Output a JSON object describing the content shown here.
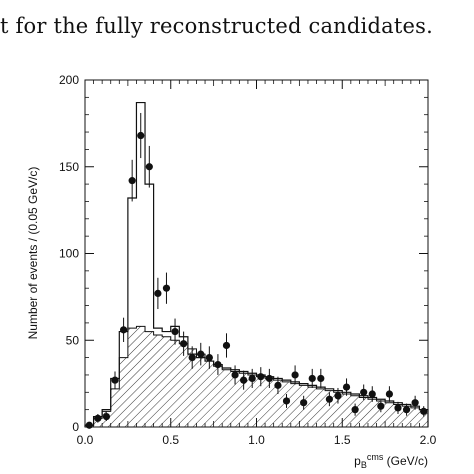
{
  "caption": "t for the fully reconstructed candidates.",
  "chart_data": {
    "type": "bar",
    "xlabel": "p",
    "xlabel_sub": "B",
    "xlabel_sup": "cms",
    "xlabel_unit": " (GeV/c)",
    "ylabel": "Number of events / (0.05 GeV/c)",
    "xlim": [
      0.0,
      2.0
    ],
    "ylim": [
      0,
      200
    ],
    "x_ticks": [
      "0.0",
      "0.5",
      "1.0",
      "1.5",
      "2.0"
    ],
    "y_ticks": [
      "0",
      "50",
      "100",
      "150",
      "200"
    ],
    "grid": false,
    "bin_edges": [
      0.0,
      0.05,
      0.1,
      0.15,
      0.2,
      0.25,
      0.3,
      0.35,
      0.4,
      0.45,
      0.5,
      0.55,
      0.6,
      0.65,
      0.7,
      0.75,
      0.8,
      0.85,
      0.9,
      0.95,
      1.0,
      1.05,
      1.1,
      1.15,
      1.2,
      1.25,
      1.3,
      1.35,
      1.4,
      1.45,
      1.5,
      1.55,
      1.6,
      1.65,
      1.7,
      1.75,
      1.8,
      1.85,
      1.9,
      1.95,
      2.0
    ],
    "series": [
      {
        "kind": "histogram-open",
        "values": [
          1,
          6,
          10,
          28,
          55,
          132,
          187,
          140,
          57,
          55,
          58,
          52,
          42,
          40,
          38,
          36,
          34,
          33,
          32,
          31,
          30,
          29,
          28,
          27,
          26,
          25,
          24,
          23,
          22,
          21,
          20,
          19,
          18,
          17,
          16,
          15,
          14,
          13,
          12,
          10
        ]
      },
      {
        "kind": "histogram-hatched",
        "values": [
          1,
          5,
          9,
          22,
          40,
          57,
          58,
          55,
          53,
          52,
          50,
          48,
          45,
          42,
          38,
          35,
          33,
          32,
          31,
          30,
          29,
          28,
          27,
          26,
          25,
          24,
          23,
          22,
          21,
          20,
          19,
          18,
          17,
          16,
          15,
          14,
          13,
          12,
          11,
          10
        ]
      },
      {
        "kind": "data-points",
        "x": [
          0.025,
          0.075,
          0.125,
          0.175,
          0.225,
          0.275,
          0.325,
          0.375,
          0.425,
          0.475,
          0.525,
          0.575,
          0.625,
          0.675,
          0.725,
          0.775,
          0.825,
          0.875,
          0.925,
          0.975,
          1.025,
          1.075,
          1.125,
          1.175,
          1.225,
          1.275,
          1.325,
          1.375,
          1.425,
          1.475,
          1.525,
          1.575,
          1.625,
          1.675,
          1.725,
          1.775,
          1.825,
          1.875,
          1.925,
          1.975
        ],
        "y": [
          1,
          5,
          6,
          27,
          56,
          142,
          168,
          150,
          77,
          80,
          55,
          48,
          40,
          42,
          40,
          36,
          47,
          30,
          27,
          28,
          29,
          28,
          24,
          15,
          30,
          14,
          28,
          28,
          16,
          18,
          23,
          10,
          20,
          19,
          12,
          19,
          11,
          10,
          14,
          9
        ],
        "err": [
          1,
          2.5,
          2.5,
          5,
          7,
          12,
          13,
          12,
          9,
          9,
          7.5,
          7,
          6.5,
          6.5,
          6.5,
          6,
          7,
          5.5,
          5.5,
          5.5,
          5.5,
          5.5,
          5,
          4,
          5.5,
          4,
          5.5,
          5.5,
          4,
          4.5,
          5,
          3.5,
          4.5,
          4.5,
          3.5,
          4.5,
          3.5,
          3.5,
          4,
          3
        ]
      }
    ]
  }
}
